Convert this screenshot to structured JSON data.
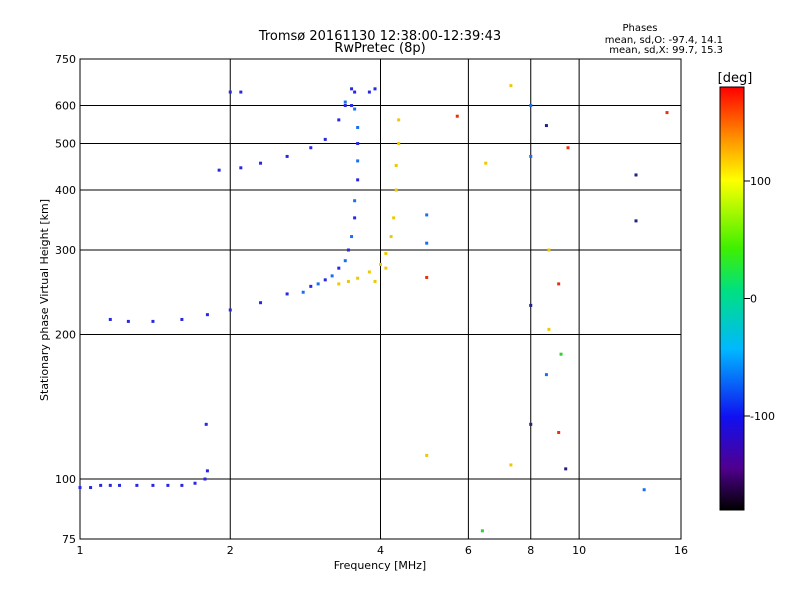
{
  "title_line1": "Tromsø 20161130 12:38:00-12:39:43",
  "title_line2": "RwPretec (8p)",
  "stats": {
    "heading": "Phases",
    "line_o": "mean, sd,O: -97.4, 14.1",
    "line_x": "mean, sd,X:  99.7, 15.3"
  },
  "colorbar": {
    "label": "[deg]",
    "ticks": [
      {
        "value": 100,
        "label": "100"
      },
      {
        "value": 0,
        "label": "0"
      },
      {
        "value": -100,
        "label": "-100"
      }
    ],
    "range": [
      -180,
      180
    ]
  },
  "chart_data": {
    "type": "scatter",
    "xlabel": "Frequency [MHz]",
    "ylabel": "Stationary phase Virtual Height [km]",
    "xscale": "log",
    "yscale": "log",
    "xlim": [
      1,
      16
    ],
    "ylim": [
      75,
      750
    ],
    "xticks": [
      1,
      2,
      4,
      6,
      8,
      10,
      16
    ],
    "yticks": [
      75,
      100,
      200,
      300,
      400,
      500,
      600,
      750
    ],
    "xgrid": [
      2,
      4,
      6,
      8,
      10
    ],
    "ygrid": [
      100,
      200,
      300,
      400,
      500,
      600
    ],
    "series": [
      {
        "color": "#2828e0",
        "points": [
          [
            1.0,
            96
          ],
          [
            1.05,
            96
          ],
          [
            1.1,
            97
          ],
          [
            1.15,
            97
          ],
          [
            1.2,
            97
          ],
          [
            1.3,
            97
          ],
          [
            1.4,
            97
          ],
          [
            1.5,
            97
          ],
          [
            1.6,
            97
          ],
          [
            1.7,
            98
          ],
          [
            1.78,
            100
          ],
          [
            1.8,
            104
          ],
          [
            1.79,
            130
          ],
          [
            1.15,
            215
          ],
          [
            1.25,
            213
          ],
          [
            1.4,
            213
          ],
          [
            1.6,
            215
          ],
          [
            1.8,
            220
          ],
          [
            2.0,
            225
          ],
          [
            2.3,
            233
          ],
          [
            2.6,
            243
          ],
          [
            2.9,
            252
          ],
          [
            3.1,
            260
          ],
          [
            3.3,
            275
          ],
          [
            3.45,
            300
          ],
          [
            3.55,
            350
          ],
          [
            3.6,
            420
          ],
          [
            3.6,
            500
          ],
          [
            3.5,
            600
          ],
          [
            3.5,
            650
          ],
          [
            3.55,
            640
          ],
          [
            1.9,
            440
          ],
          [
            2.1,
            445
          ],
          [
            2.3,
            455
          ],
          [
            2.6,
            470
          ],
          [
            2.9,
            490
          ],
          [
            3.1,
            510
          ],
          [
            3.3,
            560
          ],
          [
            3.4,
            600
          ],
          [
            2.0,
            640
          ],
          [
            2.1,
            640
          ],
          [
            3.8,
            640
          ],
          [
            3.9,
            650
          ]
        ]
      },
      {
        "color": "#1870f0",
        "points": [
          [
            2.8,
            245
          ],
          [
            3.0,
            255
          ],
          [
            3.2,
            265
          ],
          [
            3.4,
            285
          ],
          [
            3.5,
            320
          ],
          [
            3.55,
            380
          ],
          [
            3.6,
            460
          ],
          [
            3.6,
            540
          ],
          [
            3.55,
            590
          ],
          [
            3.4,
            610
          ],
          [
            4.95,
            310
          ],
          [
            4.95,
            355
          ],
          [
            8.0,
            600
          ],
          [
            8.0,
            470
          ],
          [
            8.6,
            165
          ],
          [
            13.5,
            95
          ]
        ]
      },
      {
        "color": "#f0c800",
        "points": [
          [
            3.3,
            255
          ],
          [
            3.45,
            258
          ],
          [
            3.6,
            262
          ],
          [
            3.8,
            270
          ],
          [
            4.0,
            280
          ],
          [
            4.1,
            295
          ],
          [
            4.2,
            320
          ],
          [
            4.25,
            350
          ],
          [
            4.3,
            400
          ],
          [
            4.3,
            450
          ],
          [
            4.35,
            500
          ],
          [
            4.35,
            560
          ],
          [
            3.9,
            258
          ],
          [
            4.1,
            275
          ],
          [
            4.95,
            112
          ],
          [
            6.5,
            455
          ],
          [
            7.3,
            660
          ],
          [
            7.3,
            107
          ],
          [
            8.7,
            300
          ],
          [
            8.7,
            205
          ]
        ]
      },
      {
        "color": "#e83010",
        "points": [
          [
            5.7,
            570
          ],
          [
            9.1,
            255
          ],
          [
            9.1,
            125
          ],
          [
            9.5,
            490
          ],
          [
            15.0,
            580
          ],
          [
            4.95,
            263
          ]
        ]
      },
      {
        "color": "#30d030",
        "points": [
          [
            6.4,
            78
          ],
          [
            9.2,
            182
          ]
        ]
      },
      {
        "color": "#202080",
        "points": [
          [
            8.6,
            545
          ],
          [
            9.4,
            105
          ],
          [
            13.0,
            430
          ],
          [
            13.0,
            345
          ],
          [
            8.0,
            130
          ],
          [
            8.0,
            230
          ]
        ]
      }
    ]
  }
}
